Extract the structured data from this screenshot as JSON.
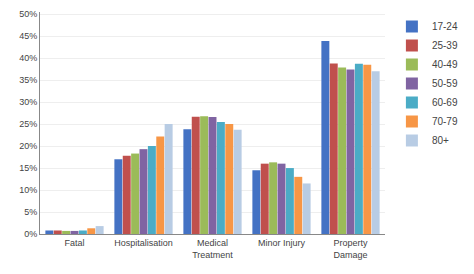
{
  "chart_data": {
    "type": "bar",
    "categories": [
      "Fatal",
      "Hospitalisation",
      "Medical\nTreatment",
      "Minor Injury",
      "Property\nDamage"
    ],
    "series": [
      {
        "name": "17-24",
        "color": "#4472C4",
        "values": [
          0.008,
          0.17,
          0.238,
          0.145,
          0.439
        ]
      },
      {
        "name": "25-39",
        "color": "#C0504D",
        "values": [
          0.008,
          0.178,
          0.267,
          0.16,
          0.388
        ]
      },
      {
        "name": "40-49",
        "color": "#9BBB59",
        "values": [
          0.007,
          0.183,
          0.268,
          0.163,
          0.379
        ]
      },
      {
        "name": "50-59",
        "color": "#8064A2",
        "values": [
          0.007,
          0.193,
          0.266,
          0.16,
          0.374
        ]
      },
      {
        "name": "60-69",
        "color": "#4BACC6",
        "values": [
          0.008,
          0.2,
          0.255,
          0.15,
          0.387
        ]
      },
      {
        "name": "70-79",
        "color": "#F79646",
        "values": [
          0.013,
          0.222,
          0.25,
          0.13,
          0.385
        ]
      },
      {
        "name": "80+",
        "color": "#B8CCE4",
        "values": [
          0.018,
          0.25,
          0.237,
          0.115,
          0.37
        ]
      }
    ],
    "ylim": [
      0,
      0.505
    ],
    "yticks": [
      {
        "value": 0.0,
        "label": "0%"
      },
      {
        "value": 0.05,
        "label": "5%"
      },
      {
        "value": 0.1,
        "label": "10%"
      },
      {
        "value": 0.15,
        "label": "15%"
      },
      {
        "value": 0.2,
        "label": "20%"
      },
      {
        "value": 0.25,
        "label": "25%"
      },
      {
        "value": 0.3,
        "label": "30%"
      },
      {
        "value": 0.35,
        "label": "35%"
      },
      {
        "value": 0.4,
        "label": "40%"
      },
      {
        "value": 0.45,
        "label": "45%"
      },
      {
        "value": 0.5,
        "label": "50%"
      }
    ],
    "grid": true,
    "legend": "right"
  }
}
